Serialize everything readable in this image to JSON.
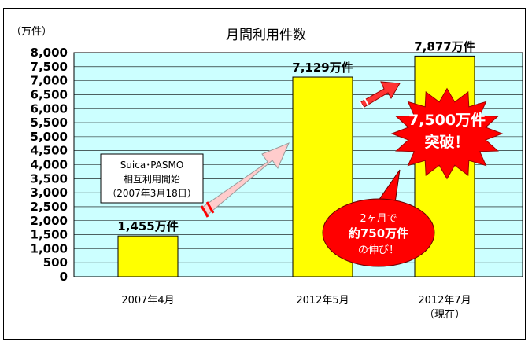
{
  "chart_data": {
    "type": "bar",
    "title": "月間利用件数",
    "unit_label": "（万件）",
    "ylim": [
      0,
      8000
    ],
    "ytick_labels": [
      "0",
      "500",
      "1,000",
      "1,500",
      "2,000",
      "2,500",
      "3,000",
      "3,500",
      "4,000",
      "4,500",
      "5,000",
      "5,500",
      "6,000",
      "6,500",
      "7,000",
      "7,500",
      "8,000"
    ],
    "categories": [
      "2007年4月",
      "2012年5月",
      "2012年7月"
    ],
    "category_sublabels": [
      "",
      "",
      "（現在）"
    ],
    "values": [
      1455,
      7129,
      7877
    ],
    "value_labels": [
      "1,455万件",
      "7,129万件",
      "7,877万件"
    ],
    "grid": true,
    "colors": {
      "plot_bg": "#ccffff",
      "bar": "#ffff00",
      "bar_edge": "#000000",
      "burst": "#ff0000",
      "arrow_big": "#ffcccc",
      "arrow_small": "#ff3333"
    },
    "annotations": {
      "note_lines": [
        "Suica･PASMO",
        "相互利用開始",
        "（2007年3月18日）"
      ],
      "burst_lines": [
        "7,500万件",
        "突破！"
      ],
      "callout_lines": [
        "2ヶ月で",
        "約750万件",
        "の伸び！"
      ]
    }
  }
}
